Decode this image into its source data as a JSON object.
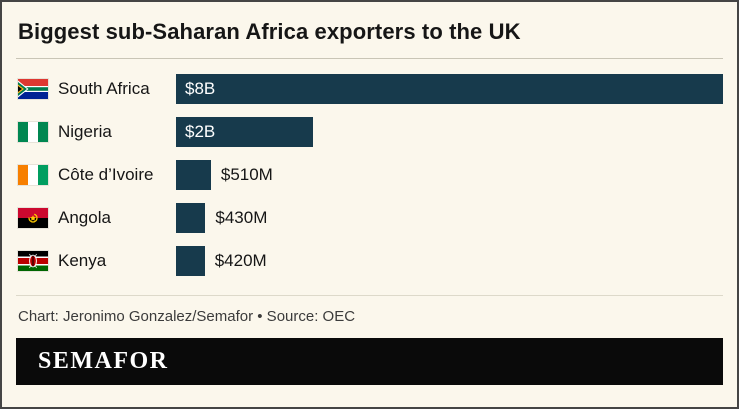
{
  "title": "Biggest sub-Saharan Africa exporters to the UK",
  "caption": "Chart: Jeronimo Gonzalez/Semafor • Source: OEC",
  "brand": "SEMAFOR",
  "colors": {
    "bar": "#173a4c",
    "background": "#fbf7ec"
  },
  "rows": [
    {
      "country": "South Africa",
      "value": 8000,
      "label": "$8B",
      "label_position": "inside"
    },
    {
      "country": "Nigeria",
      "value": 2000,
      "label": "$2B",
      "label_position": "inside"
    },
    {
      "country": "Côte d’Ivoire",
      "value": 510,
      "label": "$510M",
      "label_position": "outside"
    },
    {
      "country": "Angola",
      "value": 430,
      "label": "$430M",
      "label_position": "outside"
    },
    {
      "country": "Kenya",
      "value": 420,
      "label": "$420M",
      "label_position": "outside"
    }
  ],
  "chart_data": {
    "type": "bar",
    "orientation": "horizontal",
    "title": "Biggest sub-Saharan Africa exporters to the UK",
    "categories": [
      "South Africa",
      "Nigeria",
      "Côte d’Ivoire",
      "Angola",
      "Kenya"
    ],
    "values_usd_millions": [
      8000,
      2000,
      510,
      430,
      420
    ],
    "value_labels": [
      "$8B",
      "$2B",
      "$510M",
      "$430M",
      "$420M"
    ],
    "xlim": [
      0,
      8000
    ],
    "grid": false,
    "legend": "none",
    "source": "OEC",
    "credit": "Jeronimo Gonzalez/Semafor"
  }
}
